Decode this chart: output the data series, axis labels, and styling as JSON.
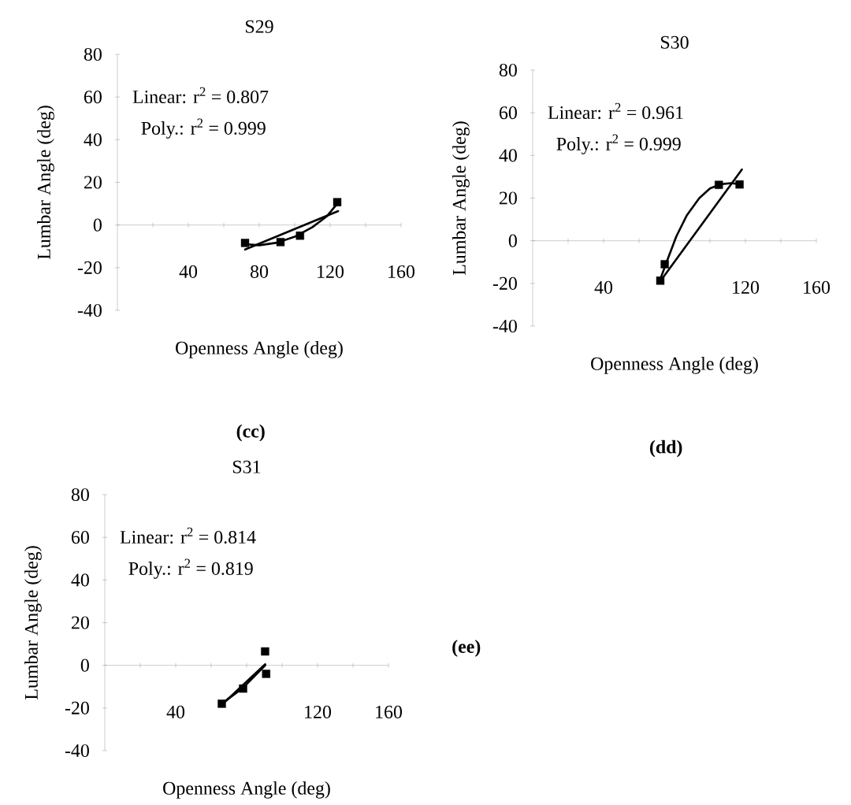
{
  "chart_data": [
    {
      "type": "scatter",
      "title": "S29",
      "xlabel": "Openness Angle (deg)",
      "ylabel": "Lumbar Angle (deg)",
      "annotations": [
        "Linear: r$^{2}$ = 0.807",
        "Poly.:   r$^{2}$ = 0.999",
        "(cc)"
      ],
      "xlim": [
        0,
        160
      ],
      "ylim": [
        -40,
        80
      ],
      "xticks": [
        {
          "value": 20,
          "label": null
        },
        40,
        {
          "value": 60,
          "label": null
        },
        80,
        {
          "value": 100,
          "label": null
        },
        120,
        {
          "value": 140,
          "label": null
        },
        160
      ],
      "yticks": [
        -40,
        -20,
        0,
        20,
        40,
        60,
        80
      ],
      "series": [
        {
          "type": "line",
          "color": "#000000",
          "x": [
            72,
            124.5
          ],
          "values": [
            -11.5,
            6.5
          ]
        },
        {
          "type": "line",
          "color": "#000000",
          "x": [
            72,
            80,
            90,
            100,
            110,
            118,
            124
          ],
          "values": [
            -9,
            -9.5,
            -8.3,
            -5.5,
            -1,
            4,
            10
          ]
        },
        {
          "type": "scatter",
          "marker": "square",
          "color": "#000000",
          "x": [
            72,
            92,
            103,
            124
          ],
          "values": [
            -8.4,
            -8,
            -5,
            10.7
          ]
        }
      ]
    },
    {
      "type": "scatter",
      "title": "S30",
      "xlabel": "Openness Angle (deg)",
      "ylabel": "Lumbar Angle (deg)",
      "annotations": [
        "Linear: r$^{2}$ = 0.961",
        "Poly.:   r$^{2}$ = 0.999",
        "(dd)"
      ],
      "xlim": [
        0,
        160
      ],
      "ylim": [
        -40,
        80
      ],
      "xticks": [
        {
          "value": 20,
          "label": null
        },
        40,
        {
          "value": 60,
          "label": null
        },
        {
          "value": 80,
          "label": null
        },
        {
          "value": 100,
          "label": null
        },
        120,
        {
          "value": 140,
          "label": null
        },
        160
      ],
      "yticks": [
        -40,
        -20,
        0,
        20,
        40,
        60,
        80
      ],
      "series": [
        {
          "type": "line",
          "color": "#000000",
          "x": [
            72,
            118
          ],
          "values": [
            -19,
            33.4
          ]
        },
        {
          "type": "line",
          "color": "#000000",
          "x": [
            72,
            76,
            81,
            87,
            94,
            100,
            106,
            112,
            117
          ],
          "values": [
            -18,
            -9,
            2,
            12,
            20,
            24.5,
            26.5,
            27,
            26.5
          ]
        },
        {
          "type": "scatter",
          "marker": "square",
          "color": "#000000",
          "x": [
            72,
            74.5,
            105,
            116.7
          ],
          "values": [
            -18.7,
            -11,
            26.2,
            26.4
          ]
        }
      ]
    },
    {
      "type": "scatter",
      "title": "S31",
      "xlabel": "Openness Angle (deg)",
      "ylabel": "Lumbar Angle (deg)",
      "annotations": [
        "Linear: r$^{2}$ = 0.814",
        "Poly.:   r$^{2}$ = 0.819",
        "(ee)"
      ],
      "xlim": [
        0,
        160
      ],
      "ylim": [
        -40,
        80
      ],
      "xticks": [
        {
          "value": 20,
          "label": null
        },
        40,
        {
          "value": 60,
          "label": null
        },
        {
          "value": 80,
          "label": null
        },
        {
          "value": 100,
          "label": null
        },
        120,
        {
          "value": 140,
          "label": null
        },
        160
      ],
      "yticks": [
        -40,
        -20,
        0,
        20,
        40,
        60,
        80
      ],
      "series": [
        {
          "type": "line",
          "color": "#000000",
          "x": [
            66,
            90.5
          ],
          "values": [
            -18.5,
            0.5
          ]
        },
        {
          "type": "line",
          "color": "#000000",
          "x": [
            66,
            78,
            90.5
          ],
          "values": [
            -18,
            -10.5,
            0
          ]
        },
        {
          "type": "scatter",
          "marker": "square",
          "color": "#000000",
          "x": [
            66,
            78,
            90.4,
            91
          ],
          "values": [
            -18,
            -10.9,
            6.5,
            -4
          ]
        }
      ]
    }
  ]
}
